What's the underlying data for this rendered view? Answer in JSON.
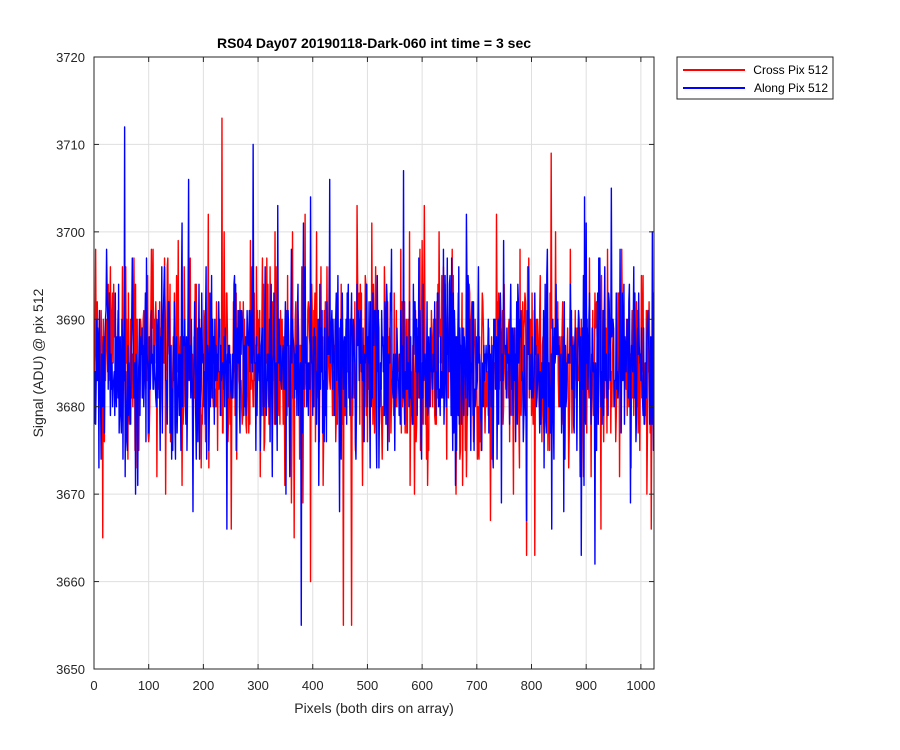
{
  "chart_data": {
    "type": "line",
    "title": "RS04 Day07 20190118-Dark-060 int time = 3 sec",
    "xlabel": "Pixels (both dirs on array)",
    "ylabel": "Signal (ADU) @ pix 512",
    "xlim": [
      0,
      1024
    ],
    "ylim": [
      3650,
      3720
    ],
    "xticks": [
      0,
      100,
      200,
      300,
      400,
      500,
      600,
      700,
      800,
      900,
      1000
    ],
    "yticks": [
      3650,
      3660,
      3670,
      3680,
      3690,
      3700,
      3710,
      3720
    ],
    "grid": true,
    "legend_position": "outside-top-right",
    "series": [
      {
        "name": "Cross Pix 512",
        "color": "#ff0000",
        "seed": 12345,
        "n_points": 1024,
        "mean": 3684.5,
        "std": 6.0,
        "spikes": [
          [
            2,
            3698
          ],
          [
            15,
            3665
          ],
          [
            25,
            3694
          ],
          [
            130,
            3670
          ],
          [
            175,
            3697
          ],
          [
            230,
            3685
          ],
          [
            233,
            3713
          ],
          [
            237,
            3700
          ],
          [
            250,
            3666
          ],
          [
            285,
            3699
          ],
          [
            330,
            3700
          ],
          [
            365,
            3665
          ],
          [
            385,
            3702
          ],
          [
            395,
            3660
          ],
          [
            440,
            3690
          ],
          [
            455,
            3655
          ],
          [
            470,
            3655
          ],
          [
            480,
            3703
          ],
          [
            560,
            3698
          ],
          [
            577,
            3671
          ],
          [
            630,
            3700
          ],
          [
            790,
            3663
          ],
          [
            805,
            3663
          ],
          [
            835,
            3709
          ],
          [
            870,
            3698
          ],
          [
            1000,
            3695
          ],
          [
            1010,
            3670
          ],
          [
            1018,
            3666
          ]
        ]
      },
      {
        "name": "Along Pix 512",
        "color": "#0000ff",
        "seed": 98765,
        "n_points": 1024,
        "mean": 3685.0,
        "std": 5.5,
        "spikes": [
          [
            8,
            3673
          ],
          [
            55,
            3712
          ],
          [
            75,
            3670
          ],
          [
            160,
            3701
          ],
          [
            180,
            3668
          ],
          [
            242,
            3666
          ],
          [
            290,
            3710
          ],
          [
            335,
            3703
          ],
          [
            350,
            3670
          ],
          [
            378,
            3655
          ],
          [
            395,
            3704
          ],
          [
            410,
            3671
          ],
          [
            430,
            3706
          ],
          [
            565,
            3707
          ],
          [
            660,
            3671
          ],
          [
            680,
            3702
          ],
          [
            790,
            3667
          ],
          [
            890,
            3663
          ],
          [
            915,
            3662
          ],
          [
            945,
            3705
          ],
          [
            980,
            3669
          ],
          [
            1020,
            3700
          ]
        ]
      }
    ]
  }
}
